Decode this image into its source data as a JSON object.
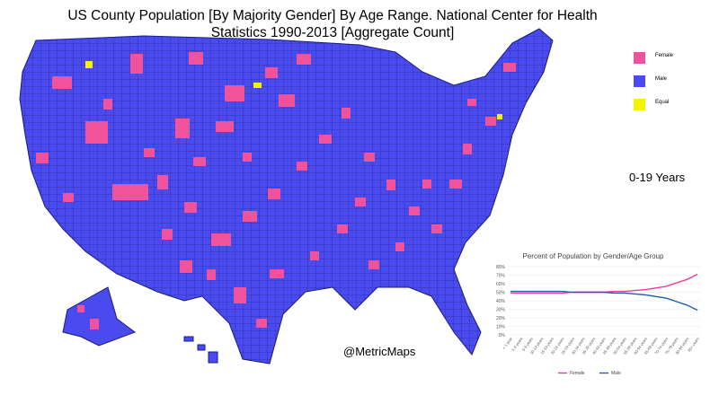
{
  "title": {
    "line1": "US County Population [By Majority Gender] By Age Range.  National Center for Health",
    "line2": "Statistics 1990-2013 [Aggregate Count]"
  },
  "legend": [
    {
      "label": "Female",
      "color": "#f0529c"
    },
    {
      "label": "Male",
      "color": "#4a4bef"
    },
    {
      "label": "Equal",
      "color": "#f4f400"
    }
  ],
  "age_range_label": "0-19 Years",
  "credit": "@MetricMaps",
  "colors": {
    "male": "#4a4bef",
    "female": "#f0529c",
    "equal": "#f4f400",
    "border": "#1c1c7a"
  },
  "chart_data": {
    "type": "line",
    "title": "Percent of Population by Gender/Age Group",
    "x": [
      "< 1 year",
      "1-4 years",
      "5-9 years",
      "10-14 years",
      "15-19 years",
      "20-24 years",
      "25-29 years",
      "30-34 years",
      "35-39 years",
      "40-44 years",
      "45-49 years",
      "50-54 years",
      "55-59 years",
      "60-64 years",
      "65-69 years",
      "70-74 years",
      "75-79 years",
      "80-84 years",
      "85+ years"
    ],
    "y_ticks": [
      "0%",
      "10%",
      "20%",
      "30%",
      "40%",
      "50%",
      "60%",
      "70%",
      "80%"
    ],
    "ylim": [
      0,
      80
    ],
    "series": [
      {
        "name": "Female",
        "color": "#e83e9a",
        "values": [
          49,
          49,
          49,
          49,
          49,
          49,
          50,
          50,
          50,
          50,
          51,
          51,
          52,
          53,
          55,
          57,
          61,
          65,
          71
        ]
      },
      {
        "name": "Male",
        "color": "#1f5fa8",
        "values": [
          51,
          51,
          51,
          51,
          51,
          51,
          50,
          50,
          50,
          50,
          49,
          49,
          48,
          47,
          45,
          43,
          39,
          35,
          29
        ]
      }
    ]
  }
}
